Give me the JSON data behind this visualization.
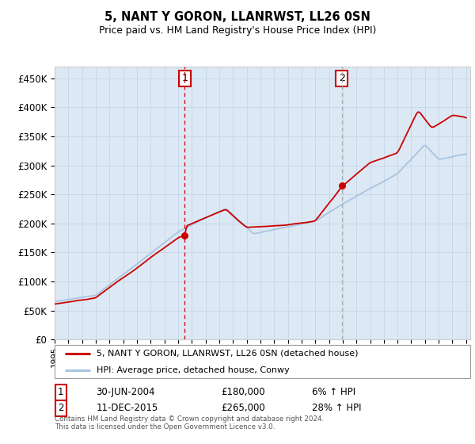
{
  "title": "5, NANT Y GORON, LLANRWST, LL26 0SN",
  "subtitle": "Price paid vs. HM Land Registry's House Price Index (HPI)",
  "ylim": [
    0,
    470000
  ],
  "yticks": [
    0,
    50000,
    100000,
    150000,
    200000,
    250000,
    300000,
    350000,
    400000,
    450000
  ],
  "ytick_labels": [
    "£0",
    "£50K",
    "£100K",
    "£150K",
    "£200K",
    "£250K",
    "£300K",
    "£350K",
    "£400K",
    "£450K"
  ],
  "hpi_color": "#a8c4e0",
  "price_color": "#cc0000",
  "bg_color": "#dce9f5",
  "grid_color": "#c8d8e8",
  "sale1_date": 2004.49,
  "sale1_price": 180000,
  "sale2_date": 2015.94,
  "sale2_price": 265000,
  "legend_property": "5, NANT Y GORON, LLANRWST, LL26 0SN (detached house)",
  "legend_hpi": "HPI: Average price, detached house, Conwy",
  "note1_date": "30-JUN-2004",
  "note1_price": "£180,000",
  "note1_hpi": "6% ↑ HPI",
  "note2_date": "11-DEC-2015",
  "note2_price": "£265,000",
  "note2_hpi": "28% ↑ HPI",
  "footer": "Contains HM Land Registry data © Crown copyright and database right 2024.\nThis data is licensed under the Open Government Licence v3.0."
}
